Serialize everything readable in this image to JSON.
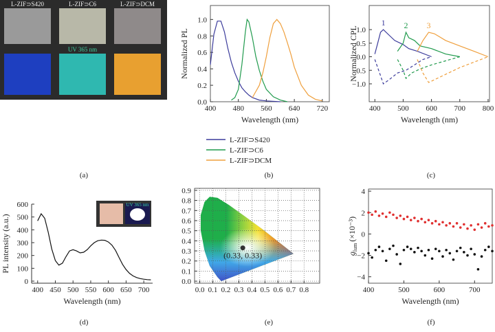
{
  "photos": {
    "labels": [
      "L-ZIF⊃S420",
      "L-ZIF⊃C6",
      "L-ZIF⊃DCM"
    ],
    "uv_label": "UV 365 nm",
    "caption": "(a)"
  },
  "chart_data": [
    {
      "type": "line",
      "caption": "(b)",
      "x_label": "Wavelength (nm)",
      "y_label": "Normalized PL",
      "xlim": [
        400,
        740
      ],
      "ylim": [
        0,
        1.17
      ],
      "xticks": [
        400,
        480,
        560,
        640,
        720
      ],
      "yticks": [
        {
          "value": 0,
          "label": "0.0"
        },
        0.2,
        0.4,
        0.6,
        0.8,
        {
          "value": 1,
          "label": "1.0"
        }
      ],
      "series": [
        {
          "name": "L-ZIF⊃S420",
          "color": "#3b3b9b",
          "x": [
            400,
            410,
            420,
            430,
            440,
            450,
            460,
            470,
            480,
            490,
            500,
            510,
            520,
            540,
            560,
            600
          ],
          "values": [
            0.45,
            0.82,
            0.98,
            0.98,
            0.85,
            0.65,
            0.48,
            0.35,
            0.25,
            0.17,
            0.12,
            0.08,
            0.05,
            0.02,
            0.01,
            0
          ]
        },
        {
          "name": "L-ZIF⊃C6",
          "color": "#1f9a4c",
          "x": [
            460,
            470,
            480,
            490,
            500,
            505,
            510,
            520,
            530,
            540,
            550,
            560,
            580,
            600,
            620
          ],
          "values": [
            0.02,
            0.05,
            0.15,
            0.45,
            0.85,
            1.0,
            0.97,
            0.78,
            0.55,
            0.38,
            0.25,
            0.15,
            0.06,
            0.02,
            0
          ]
        },
        {
          "name": "L-ZIF⊃DCM",
          "color": "#ef9f3c",
          "x": [
            520,
            540,
            550,
            560,
            570,
            580,
            590,
            600,
            610,
            620,
            630,
            640,
            660,
            680,
            700,
            720
          ],
          "values": [
            0.05,
            0.2,
            0.35,
            0.55,
            0.78,
            0.95,
            1.0,
            0.95,
            0.85,
            0.72,
            0.58,
            0.42,
            0.2,
            0.08,
            0.03,
            0.01
          ]
        }
      ]
    },
    {
      "type": "line",
      "caption": "(c)",
      "x_label": "Wavelength (nm)",
      "y_label": "Normalized CPL",
      "xlim": [
        380,
        805
      ],
      "ylim": [
        -1.66,
        1.89
      ],
      "xticks": [
        400,
        500,
        600,
        700,
        800
      ],
      "yticks": [
        {
          "value": -1,
          "label": "−1.0"
        },
        {
          "value": -0.5,
          "label": "−0.5"
        },
        {
          "value": 0,
          "label": "0.0"
        },
        0.5,
        {
          "value": 1,
          "label": "1.0"
        }
      ],
      "series": [
        {
          "label": "1",
          "color": "#3b3b9b",
          "dashed": false,
          "x": [
            400,
            410,
            420,
            430,
            450,
            470,
            500,
            520,
            550,
            600
          ],
          "values": [
            0.1,
            0.5,
            0.9,
            1.0,
            0.8,
            0.6,
            0.45,
            0.3,
            0.2,
            0
          ]
        },
        {
          "color": "#3b3b9b",
          "dashed": true,
          "x": [
            400,
            420,
            430,
            450,
            480,
            510,
            540,
            570,
            600
          ],
          "values": [
            -0.1,
            -0.7,
            -1.0,
            -0.85,
            -0.6,
            -0.5,
            -0.3,
            -0.1,
            0
          ]
        },
        {
          "label": "2",
          "color": "#1f9a4c",
          "dashed": false,
          "x": [
            480,
            500,
            510,
            520,
            540,
            560,
            600,
            650,
            700
          ],
          "values": [
            0.2,
            0.5,
            0.9,
            0.7,
            0.6,
            0.4,
            0.3,
            0.1,
            0
          ]
        },
        {
          "color": "#1f9a4c",
          "dashed": true,
          "x": [
            480,
            500,
            510,
            530,
            560,
            600,
            650,
            700
          ],
          "values": [
            -0.1,
            -0.5,
            -0.8,
            -0.6,
            -0.45,
            -0.3,
            -0.15,
            0
          ]
        },
        {
          "label": "3",
          "color": "#ef9f3c",
          "dashed": false,
          "x": [
            550,
            570,
            590,
            610,
            650,
            700,
            750,
            800
          ],
          "values": [
            0.2,
            0.6,
            0.9,
            0.85,
            0.6,
            0.4,
            0.2,
            0
          ]
        },
        {
          "color": "#ef9f3c",
          "dashed": true,
          "x": [
            550,
            570,
            590,
            620,
            660,
            700,
            750,
            800
          ],
          "values": [
            -0.1,
            -0.6,
            -0.95,
            -0.8,
            -0.6,
            -0.4,
            -0.2,
            0
          ]
        }
      ]
    },
    {
      "type": "line",
      "caption": "(d)",
      "x_label": "Wavelength (nm)",
      "y_label": "PL intensity (a.u.)",
      "inset_text": "UV 365 nm",
      "xlim": [
        383,
        725
      ],
      "ylim": [
        -16,
        600
      ],
      "xticks": [
        400,
        450,
        500,
        550,
        600,
        650,
        700
      ],
      "yticks": [
        0,
        100,
        200,
        300,
        400,
        500,
        600
      ],
      "series": [
        {
          "color": "#111111",
          "x": [
            400,
            410,
            420,
            430,
            440,
            450,
            460,
            470,
            480,
            490,
            500,
            510,
            520,
            530,
            540,
            550,
            560,
            570,
            580,
            590,
            600,
            610,
            620,
            630,
            640,
            650,
            660,
            670,
            680,
            690,
            700,
            710,
            720
          ],
          "values": [
            470,
            525,
            490,
            380,
            250,
            160,
            125,
            140,
            190,
            235,
            245,
            235,
            220,
            225,
            245,
            275,
            300,
            315,
            320,
            318,
            305,
            280,
            240,
            185,
            130,
            90,
            60,
            40,
            28,
            20,
            15,
            12,
            10
          ]
        }
      ]
    },
    {
      "type": "scatter",
      "caption": "(e)",
      "grid": true,
      "xlim": [
        -0.04,
        0.92
      ],
      "ylim": [
        -0.02,
        0.92
      ],
      "xticks": [
        {
          "value": 0,
          "label": "0.0"
        },
        0.1,
        0.2,
        0.3,
        0.4,
        0.5,
        0.6,
        0.7,
        0.8
      ],
      "yticks": [
        {
          "value": 0,
          "label": "0.0"
        },
        0.1,
        0.2,
        0.3,
        0.4,
        0.5,
        0.6,
        0.7,
        0.8,
        0.9
      ],
      "series": [
        {
          "color": "#333333",
          "x": [
            0.33
          ],
          "values": [
            0.33
          ],
          "value_labels": [
            "(0.33, 0.33)"
          ]
        }
      ]
    },
    {
      "type": "scatter",
      "caption": "(f)",
      "x_label": "Wavelength (nm)",
      "y_label": {
        "symbol": "g",
        "subscript": "lum",
        "unit": "(×10⁻³)"
      },
      "xlim": [
        400,
        750
      ],
      "ylim": [
        -4.6,
        4.2
      ],
      "xticks": [
        400,
        500,
        600,
        700
      ],
      "yticks": [
        {
          "value": -4,
          "label": "−4"
        },
        {
          "value": -2,
          "label": "−2"
        },
        0,
        2,
        4
      ],
      "series": [
        {
          "color": "#e03030",
          "x": [
            400,
            410,
            420,
            430,
            440,
            450,
            460,
            470,
            480,
            490,
            500,
            510,
            520,
            530,
            540,
            550,
            560,
            570,
            580,
            590,
            600,
            610,
            620,
            630,
            640,
            650,
            660,
            670,
            680,
            690,
            700,
            710,
            720,
            730,
            740,
            750
          ],
          "values": [
            2.0,
            1.8,
            2.1,
            1.7,
            1.9,
            1.6,
            2.0,
            1.8,
            1.5,
            1.7,
            1.4,
            1.6,
            1.3,
            1.5,
            1.2,
            1.4,
            1.1,
            1.3,
            1.0,
            1.2,
            0.9,
            1.1,
            0.8,
            1.0,
            0.7,
            1.0,
            0.6,
            0.9,
            0.5,
            0.8,
            0.4,
            0.9,
            0.6,
            1.0,
            0.7,
            0.8
          ]
        },
        {
          "color": "#111111",
          "x": [
            400,
            410,
            420,
            430,
            440,
            450,
            460,
            470,
            480,
            490,
            500,
            510,
            520,
            530,
            540,
            550,
            560,
            570,
            580,
            590,
            600,
            610,
            620,
            630,
            640,
            650,
            660,
            670,
            680,
            690,
            700,
            710,
            720,
            730,
            740,
            750
          ],
          "values": [
            -1.8,
            -2.2,
            -1.5,
            -1.2,
            -1.6,
            -2.5,
            -1.4,
            -1.1,
            -1.9,
            -2.8,
            -1.5,
            -1.2,
            -1.4,
            -1.7,
            -1.3,
            -1.6,
            -2.0,
            -1.5,
            -2.3,
            -1.4,
            -1.6,
            -2.1,
            -1.5,
            -1.8,
            -2.4,
            -1.6,
            -1.3,
            -1.7,
            -2.0,
            -1.4,
            -1.9,
            -3.3,
            -2.1,
            -1.5,
            -1.2,
            -1.6
          ]
        }
      ]
    }
  ]
}
